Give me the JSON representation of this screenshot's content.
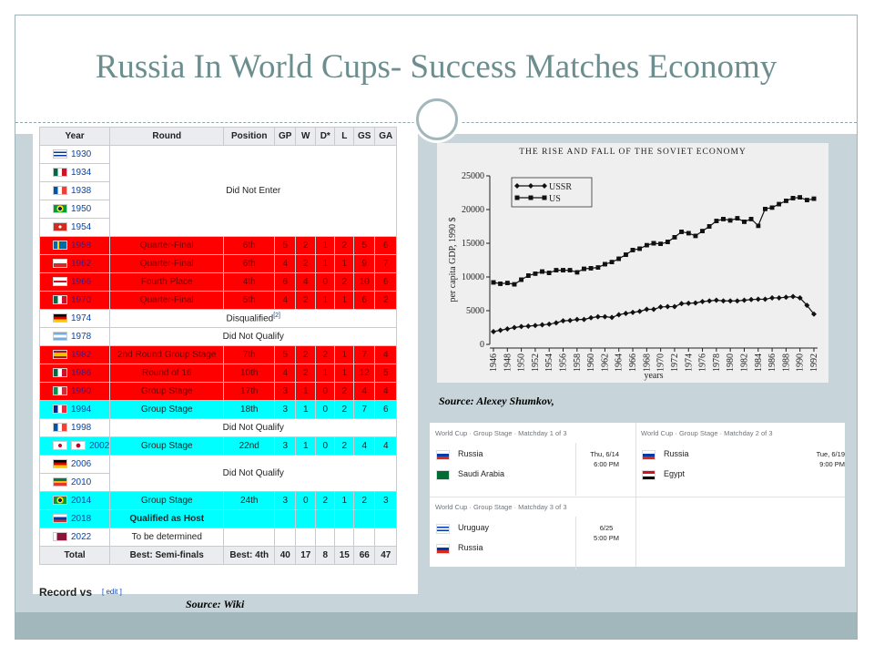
{
  "title": "Russia In World Cups- Success Matches Economy",
  "table": {
    "header": [
      "Year",
      "Round",
      "Position",
      "GP",
      "W",
      "D*",
      "L",
      "GS",
      "GA"
    ],
    "sections": [
      {
        "years": [
          1930,
          1934,
          1938,
          1950,
          1954
        ],
        "text": "Did Not Enter"
      },
      {
        "years": [
          1958
        ],
        "cells": [
          "Quarter-Final",
          "6th",
          5,
          2,
          1,
          2,
          5,
          6
        ],
        "color": "#ff0000"
      },
      {
        "years": [
          1962
        ],
        "cells": [
          "Quarter-Final",
          "6th",
          4,
          2,
          1,
          1,
          9,
          7
        ],
        "color": "#ff0000"
      },
      {
        "years": [
          1966
        ],
        "cells": [
          "Fourth Place",
          "4th",
          6,
          4,
          0,
          2,
          10,
          6
        ],
        "color": "#ff0000"
      },
      {
        "years": [
          1970
        ],
        "cells": [
          "Quarter-Final",
          "5th",
          4,
          2,
          1,
          1,
          6,
          2
        ],
        "color": "#ff0000"
      },
      {
        "years": [
          1974
        ],
        "text": "Disqualified",
        "note": "[2]"
      },
      {
        "years": [
          1978
        ],
        "text": "Did Not Qualify"
      },
      {
        "years": [
          1982
        ],
        "cells": [
          "2nd Round Group Stage",
          "7th",
          5,
          2,
          2,
          1,
          7,
          4
        ],
        "color": "#ff0000"
      },
      {
        "years": [
          1986
        ],
        "cells": [
          "Round of 16",
          "10th",
          4,
          2,
          1,
          1,
          12,
          5
        ],
        "color": "#ff0000"
      },
      {
        "years": [
          1990
        ],
        "cells": [
          "Group Stage",
          "17th",
          3,
          1,
          0,
          2,
          4,
          4
        ],
        "color": "#ff0000"
      },
      {
        "years": [
          1994
        ],
        "cells": [
          "Group Stage",
          "18th",
          3,
          1,
          0,
          2,
          7,
          6
        ],
        "color": "#00ffff"
      },
      {
        "years": [
          1998
        ],
        "text": "Did Not Qualify"
      },
      {
        "years": [
          2002
        ],
        "cells": [
          "Group Stage",
          "22nd",
          3,
          1,
          0,
          2,
          4,
          4
        ],
        "color": "#00ffff"
      },
      {
        "years": [
          2006,
          2010
        ],
        "text": "Did Not Qualify"
      },
      {
        "years": [
          2014
        ],
        "cells": [
          "Group Stage",
          "24th",
          3,
          0,
          2,
          1,
          2,
          3
        ],
        "color": "#00ffff"
      },
      {
        "years": [
          2018
        ],
        "cells": [
          "Qualified as Host"
        ],
        "color": "#00ffff"
      },
      {
        "years": [
          2022
        ],
        "cells": [
          "To be determined"
        ]
      }
    ],
    "total": [
      "Total",
      "Best: Semi-finals",
      "Best: 4th",
      40,
      17,
      8,
      15,
      66,
      47
    ],
    "after": "Record vs",
    "edit": "[ edit ]"
  },
  "table_source": "Source:  Wiki",
  "chart_source": "Source: Alexey Shumkov,",
  "chart_data": {
    "type": "line",
    "title": "THE RISE AND FALL OF THE SOVIET ECONOMY",
    "y_label": "per capita GDP, 1990 $",
    "x_label": "years",
    "x": [
      1946,
      1947,
      1948,
      1949,
      1950,
      1951,
      1952,
      1953,
      1954,
      1955,
      1956,
      1957,
      1958,
      1959,
      1960,
      1961,
      1962,
      1963,
      1964,
      1965,
      1966,
      1967,
      1968,
      1969,
      1970,
      1971,
      1972,
      1973,
      1974,
      1975,
      1976,
      1977,
      1978,
      1979,
      1980,
      1981,
      1982,
      1983,
      1984,
      1985,
      1986,
      1987,
      1988,
      1989,
      1990,
      1991,
      1992
    ],
    "series": [
      {
        "name": "USSR",
        "color": "#111111",
        "values": [
          1900,
          2100,
          2300,
          2500,
          2650,
          2700,
          2800,
          2900,
          3000,
          3200,
          3500,
          3550,
          3700,
          3700,
          3950,
          4100,
          4100,
          4000,
          4400,
          4600,
          4750,
          4900,
          5200,
          5200,
          5550,
          5600,
          5600,
          6050,
          6100,
          6150,
          6350,
          6450,
          6550,
          6450,
          6450,
          6450,
          6550,
          6650,
          6700,
          6700,
          6900,
          6900,
          7000,
          7100,
          6900,
          5800,
          4500
        ]
      },
      {
        "name": "US",
        "color": "#111111",
        "values": [
          9200,
          9000,
          9100,
          8900,
          9600,
          10200,
          10500,
          10800,
          10600,
          11000,
          11000,
          11000,
          10700,
          11200,
          11300,
          11400,
          11900,
          12200,
          12700,
          13300,
          14000,
          14200,
          14700,
          15000,
          14900,
          15200,
          15900,
          16700,
          16500,
          16100,
          16800,
          17500,
          18300,
          18600,
          18400,
          18700,
          18200,
          18600,
          17600,
          20100,
          20300,
          20800,
          21300,
          21700,
          21800,
          21400,
          21600
        ]
      }
    ],
    "xlim": [
      1946,
      1992
    ],
    "xticks": [
      1946,
      1948,
      1950,
      1952,
      1954,
      1956,
      1958,
      1960,
      1962,
      1964,
      1966,
      1968,
      1970,
      1972,
      1974,
      1976,
      1978,
      1980,
      1982,
      1984,
      1986,
      1988,
      1990,
      1992
    ],
    "ylim": [
      0,
      25000
    ],
    "yticks": [
      0,
      5000,
      10000,
      15000,
      20000,
      25000
    ]
  },
  "matches": [
    {
      "header": "World Cup · Group Stage · Matchday 1 of 3",
      "teams": [
        "Russia",
        "Saudi Arabia"
      ],
      "date": "Thu, 6/14",
      "time": "6:00 PM"
    },
    {
      "header": "World Cup · Group Stage · Matchday 2 of 3",
      "teams": [
        "Russia",
        "Egypt"
      ],
      "date": "Tue, 6/19",
      "time": "9:00 PM"
    },
    {
      "header": "World Cup · Group Stage · Matchday 3 of 3",
      "teams": [
        "Uruguay",
        "Russia"
      ],
      "date": "6/25",
      "time": "5:00 PM"
    }
  ]
}
